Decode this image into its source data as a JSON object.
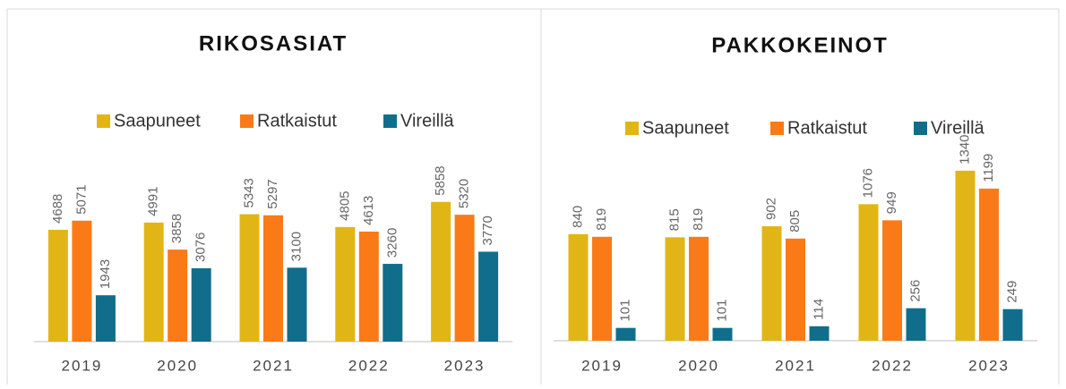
{
  "chart_data": [
    {
      "type": "bar",
      "title": "RIKOSASIAT",
      "categories": [
        "2019",
        "2020",
        "2021",
        "2022",
        "2023"
      ],
      "series": [
        {
          "name": "Saapuneet",
          "color": "#e2b516",
          "values": [
            4688,
            4991,
            5343,
            4805,
            5858
          ]
        },
        {
          "name": "Ratkaistut",
          "color": "#fa7a18",
          "values": [
            5071,
            3858,
            5297,
            4613,
            5320
          ]
        },
        {
          "name": "Vireillä",
          "color": "#106e8c",
          "values": [
            1943,
            3076,
            3100,
            3260,
            3770
          ]
        }
      ],
      "ylim": [
        0,
        9000
      ]
    },
    {
      "type": "bar",
      "title": "PAKKOKEINOT",
      "categories": [
        "2019",
        "2020",
        "2021",
        "2022",
        "2023"
      ],
      "series": [
        {
          "name": "Saapuneet",
          "color": "#e2b516",
          "values": [
            840,
            815,
            902,
            1076,
            1340
          ]
        },
        {
          "name": "Ratkaistut",
          "color": "#fa7a18",
          "values": [
            819,
            819,
            805,
            949,
            1199
          ]
        },
        {
          "name": "Vireillä",
          "color": "#106e8c",
          "values": [
            101,
            101,
            114,
            256,
            249
          ]
        }
      ],
      "ylim": [
        0,
        1600
      ]
    }
  ]
}
